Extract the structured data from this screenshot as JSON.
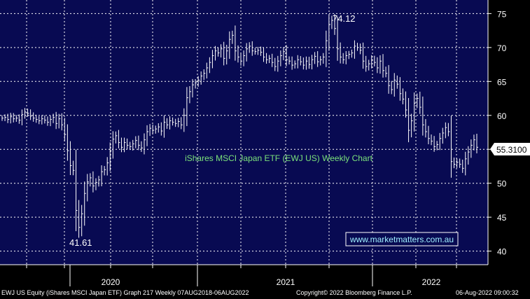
{
  "chart_data": {
    "type": "bar",
    "title": "iShares MSCI Japan ETF (EWJ US) Weekly Chart",
    "watermark": "www.marketmatters.com.au",
    "ylim": [
      38,
      77
    ],
    "y_ticks": [
      40,
      45,
      50,
      55,
      60,
      65,
      70,
      75
    ],
    "x_year_labels": [
      "2020",
      "2021",
      "2022"
    ],
    "last_price_label": "55.3100",
    "high_label": "74.12",
    "low_label": "41.61",
    "colors": {
      "background": "#080a52",
      "grid": "#ffffff",
      "bars": "#ffffff",
      "title": "#7be27b",
      "watermark": "#9ff0ff",
      "price_tag_bg": "#ffffff"
    },
    "weekly_close": [
      59.6,
      59.7,
      59.4,
      59.8,
      59.5,
      59.6,
      59.3,
      60.1,
      60.5,
      60.3,
      59.9,
      59.6,
      59.4,
      59.2,
      59.5,
      59.3,
      59.0,
      59.4,
      59.7,
      58.8,
      59.5,
      58.6,
      57.2,
      54.8,
      52.6,
      51.9,
      46.0,
      43.5,
      45.5,
      48.5,
      50.2,
      50.8,
      49.6,
      50.1,
      50.5,
      51.7,
      52.0,
      53.0,
      54.8,
      56.5,
      57.0,
      56.0,
      55.3,
      56.0,
      55.6,
      55.4,
      55.8,
      56.3,
      55.6,
      55.2,
      56.4,
      57.6,
      58.1,
      57.8,
      58.0,
      58.3,
      57.7,
      59.0,
      58.6,
      59.2,
      59.0,
      58.8,
      59.1,
      58.6,
      60.0,
      62.6,
      63.5,
      64.5,
      64.8,
      65.2,
      65.8,
      66.2,
      67.0,
      67.8,
      68.8,
      69.5,
      69.2,
      69.8,
      68.4,
      69.5,
      71.2,
      71.8,
      69.5,
      68.6,
      68.0,
      68.8,
      69.8,
      70.2,
      69.5,
      69.4,
      69.6,
      69.3,
      68.6,
      68.2,
      68.4,
      67.8,
      67.2,
      68.0,
      68.8,
      69.4,
      68.2,
      68.0,
      67.4,
      67.6,
      68.2,
      67.9,
      67.4,
      68.0,
      67.5,
      68.2,
      68.7,
      67.9,
      68.2,
      68.6,
      71.0,
      73.4,
      74.0,
      72.8,
      69.8,
      68.6,
      68.2,
      68.8,
      69.0,
      69.2,
      70.2,
      70.0,
      69.6,
      68.0,
      67.2,
      67.6,
      68.2,
      67.8,
      67.0,
      68.0,
      66.6,
      66.2,
      64.4,
      63.8,
      65.2,
      64.6,
      63.2,
      62.4,
      60.8,
      57.8,
      59.2,
      61.8,
      62.5,
      61.2,
      58.6,
      57.6,
      56.6,
      56.2,
      55.4,
      55.7,
      56.6,
      57.4,
      58.2,
      57.6,
      53.2,
      52.8,
      53.1,
      52.8,
      52.2,
      53.6,
      54.6,
      55.6,
      56.4,
      55.3
    ]
  },
  "footer": {
    "left": "EWJ US Equity (iShares MSCI Japan ETF) Graph 217  Weekly 07AUG2018-06AUG2022",
    "center": "Copyright© 2022 Bloomberg Finance L.P.",
    "right": "06-Aug-2022 09:00:32"
  }
}
